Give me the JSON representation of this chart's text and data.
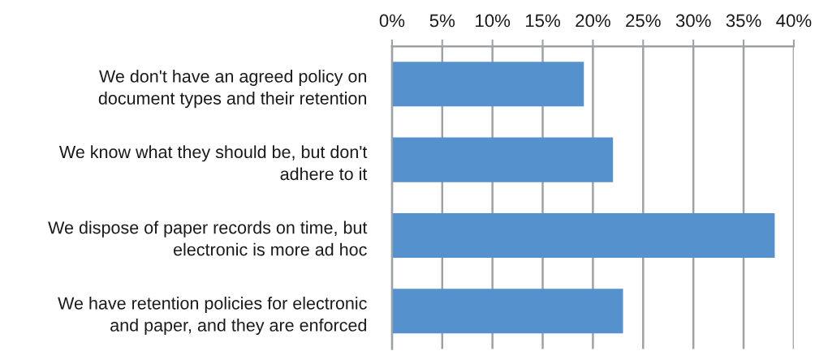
{
  "chart_data": {
    "type": "bar",
    "orientation": "horizontal",
    "categories": [
      "We don't have an agreed policy on\ndocument types and their retention",
      "We know what they should be, but don't\nadhere to it",
      "We dispose of paper records on time, but\nelectronic is more ad hoc",
      "We have retention policies for electronic\nand paper, and they are enforced"
    ],
    "values": [
      19.1,
      22.0,
      38.1,
      23.0
    ],
    "color": "#5591cc",
    "xlim": [
      0,
      40
    ],
    "xticks": [
      {
        "value": 0,
        "label": "0%"
      },
      {
        "value": 5,
        "label": "5%"
      },
      {
        "value": 10,
        "label": "10%"
      },
      {
        "value": 15,
        "label": "15%"
      },
      {
        "value": 20,
        "label": "20%"
      },
      {
        "value": 25,
        "label": "25%"
      },
      {
        "value": 30,
        "label": "30%"
      },
      {
        "value": 35,
        "label": "35%"
      },
      {
        "value": 40,
        "label": "40%"
      }
    ],
    "grid": "x",
    "legend": false
  }
}
